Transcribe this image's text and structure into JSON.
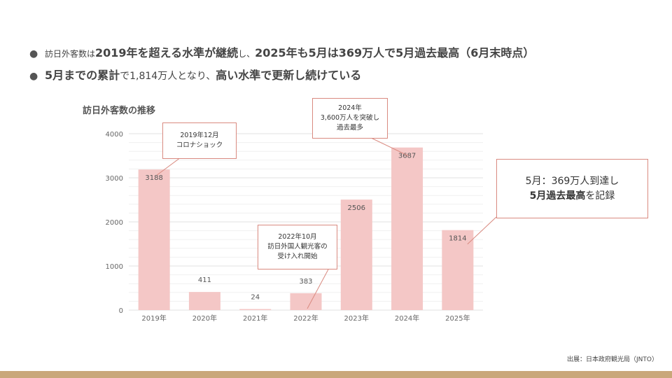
{
  "bullets": {
    "b1": {
      "seg1": "訪日外客数は",
      "seg2": "2019年を超える水準が継続",
      "seg3": "し、",
      "seg4": "2025年も5月は369万人で5月過去最高（6月末時点）"
    },
    "b2": {
      "seg1": "5月までの累計",
      "seg2": "で1,814万人",
      "seg3": "となり、",
      "seg4": "高い水準で更新し続けている"
    }
  },
  "chart_title": "訪日外客数の推移",
  "chart_data": {
    "type": "bar",
    "categories": [
      "2019年",
      "2020年",
      "2021年",
      "2022年",
      "2023年",
      "2024年",
      "2025年"
    ],
    "values": [
      3188,
      411,
      24,
      383,
      2506,
      3687,
      1814
    ],
    "ylim": [
      0,
      4000
    ],
    "yticks": [
      0,
      1000,
      2000,
      3000,
      4000
    ],
    "grid": true,
    "bar_color": "#f4c7c6",
    "data_labels": [
      "3188",
      "411",
      "24",
      "383",
      "2506",
      "3687",
      "1814"
    ]
  },
  "callouts": {
    "c2019": {
      "line1": "2019年12月",
      "line2": "コロナショック"
    },
    "c2024": {
      "line1": "2024年",
      "line2": "3,600万人を突破し",
      "line3": "過去最多"
    },
    "c2022": {
      "line1": "2022年10月",
      "line2": "訪日外国人観光客の",
      "line3": "受け入れ開始"
    },
    "c2025": {
      "line1": "5月：369万人到達し",
      "line2a": "5月過去最高",
      "line2b": "を記録"
    }
  },
  "source": "出展：日本政府観光局（JNTO）",
  "colors": {
    "callout_border": "#d98a80",
    "footer": "#c9a77a"
  }
}
